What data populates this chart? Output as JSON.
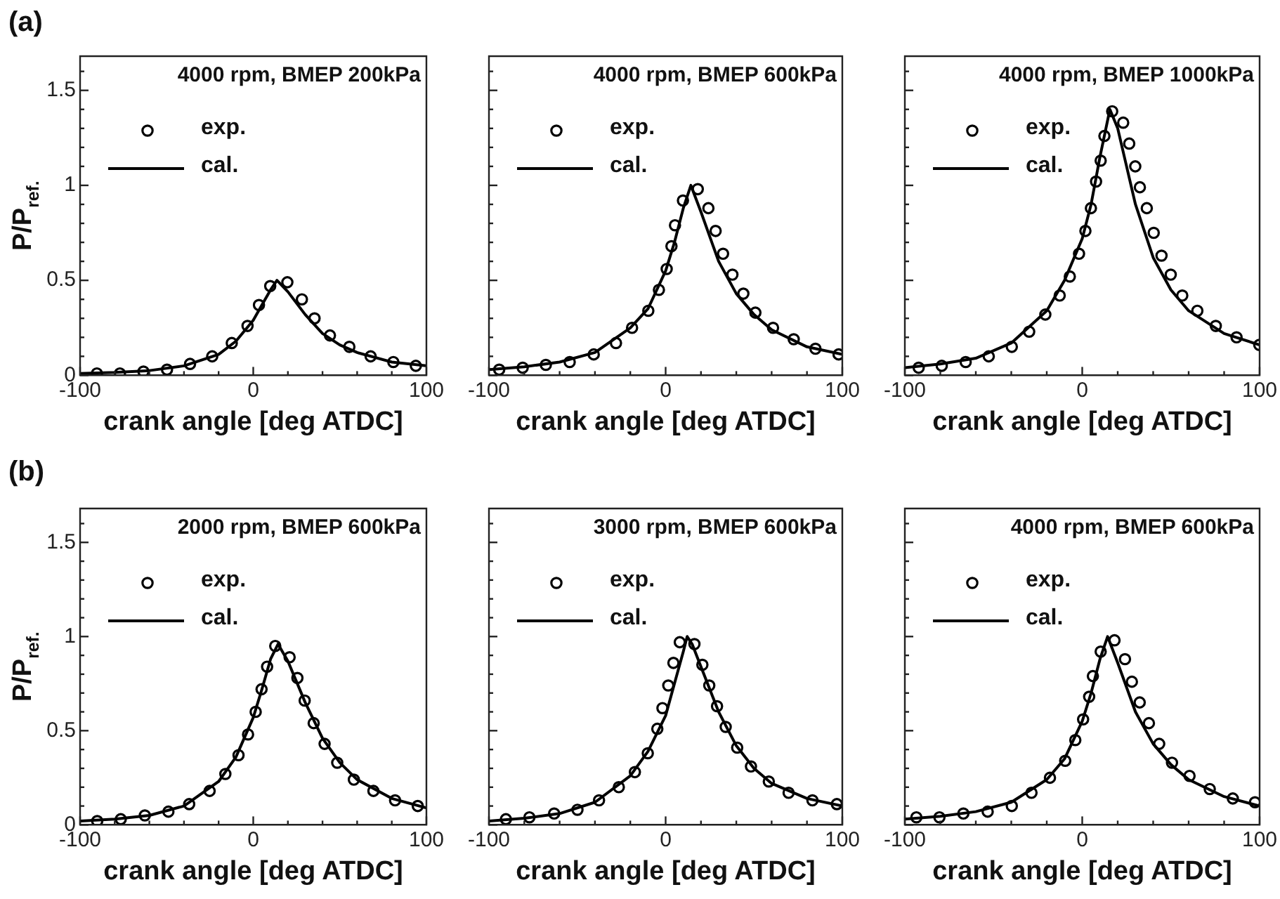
{
  "chart_data": [
    {
      "type": "line",
      "title": "4000 rpm, BMEP 200kPa",
      "xlabel": "crank angle [deg ATDC]",
      "ylabel": "P/P$_{ref.}$",
      "annotations": [
        "(a)"
      ],
      "xlim": [
        -100,
        100
      ],
      "xticks": [
        -100,
        {
          "value": -80,
          "label": null
        },
        {
          "value": -60,
          "label": null
        },
        {
          "value": -40,
          "label": null
        },
        {
          "value": -20,
          "label": null
        },
        0,
        {
          "value": 20,
          "label": null
        },
        {
          "value": 40,
          "label": null
        },
        {
          "value": 60,
          "label": null
        },
        {
          "value": 80,
          "label": null
        },
        100
      ],
      "ylim": [
        0,
        1.68
      ],
      "yticks": [
        0,
        {
          "value": 0.1,
          "label": null
        },
        {
          "value": 0.2,
          "label": null
        },
        {
          "value": 0.3,
          "label": null
        },
        {
          "value": 0.4,
          "label": null
        },
        0.5,
        {
          "value": 0.6,
          "label": null
        },
        {
          "value": 0.7,
          "label": null
        },
        {
          "value": 0.8,
          "label": null
        },
        {
          "value": 0.9,
          "label": null
        },
        1,
        {
          "value": 1.1,
          "label": null
        },
        {
          "value": 1.2,
          "label": null
        },
        {
          "value": 1.3,
          "label": null
        },
        {
          "value": 1.4,
          "label": null
        },
        1.5,
        {
          "value": 1.6,
          "label": null
        }
      ],
      "legend": "top left",
      "series": [
        {
          "name": "exp.",
          "type": "scatter",
          "marker": "circle",
          "color": "#000000",
          "x": [
            -90.3,
            -77,
            -63.4,
            -49.8,
            -36.5,
            -23.7,
            -12.4,
            -3.3,
            3.3,
            9.8,
            19.7,
            28.1,
            35.4,
            44.3,
            55.5,
            67.8,
            80.9,
            93.9
          ],
          "values": [
            0.01,
            0.01,
            0.02,
            0.03,
            0.06,
            0.1,
            0.17,
            0.26,
            0.37,
            0.47,
            0.49,
            0.4,
            0.3,
            0.21,
            0.15,
            0.1,
            0.07,
            0.05
          ]
        },
        {
          "name": "cal.",
          "type": "line",
          "marker": "none",
          "line_style": "solid",
          "color": "#000000",
          "x": [
            -100,
            -80,
            -60,
            -40,
            -20,
            -10,
            0,
            5,
            10,
            13.7,
            20,
            30,
            40,
            50,
            60,
            80,
            100
          ],
          "values": [
            0.01,
            0.015,
            0.025,
            0.05,
            0.11,
            0.18,
            0.29,
            0.37,
            0.45,
            0.5,
            0.44,
            0.32,
            0.22,
            0.16,
            0.12,
            0.07,
            0.05
          ]
        }
      ]
    },
    {
      "type": "line",
      "title": "4000 rpm, BMEP 600kPa",
      "xlabel": "crank angle [deg ATDC]",
      "tick_labels": "x",
      "xlim": [
        -100,
        100
      ],
      "xticks": [
        -100,
        {
          "value": -80,
          "label": null
        },
        {
          "value": -60,
          "label": null
        },
        {
          "value": -40,
          "label": null
        },
        {
          "value": -20,
          "label": null
        },
        0,
        {
          "value": 20,
          "label": null
        },
        {
          "value": 40,
          "label": null
        },
        {
          "value": 60,
          "label": null
        },
        {
          "value": 80,
          "label": null
        },
        100
      ],
      "ylim": [
        0,
        1.68
      ],
      "yticks": [
        0,
        {
          "value": 0.1,
          "label": null
        },
        {
          "value": 0.2,
          "label": null
        },
        {
          "value": 0.3,
          "label": null
        },
        {
          "value": 0.4,
          "label": null
        },
        0.5,
        {
          "value": 0.6,
          "label": null
        },
        {
          "value": 0.7,
          "label": null
        },
        {
          "value": 0.8,
          "label": null
        },
        {
          "value": 0.9,
          "label": null
        },
        1,
        {
          "value": 1.1,
          "label": null
        },
        {
          "value": 1.2,
          "label": null
        },
        {
          "value": 1.3,
          "label": null
        },
        {
          "value": 1.4,
          "label": null
        },
        1.5,
        {
          "value": 1.6,
          "label": null
        }
      ],
      "legend": "top left",
      "series": [
        {
          "name": "exp.",
          "type": "scatter",
          "marker": "circle",
          "color": "#000000",
          "x": [
            -94.2,
            -80.9,
            -67.8,
            -54.3,
            -40.7,
            -28.1,
            -19,
            -9.8,
            -3.8,
            0.6,
            3.3,
            5.3,
            9.8,
            18.2,
            24.2,
            28.3,
            32.5,
            37.8,
            44,
            50.8,
            60.8,
            72.5,
            84.8,
            97.9
          ],
          "values": [
            0.03,
            0.04,
            0.055,
            0.07,
            0.11,
            0.17,
            0.25,
            0.34,
            0.45,
            0.56,
            0.68,
            0.79,
            0.92,
            0.98,
            0.88,
            0.76,
            0.64,
            0.53,
            0.43,
            0.33,
            0.25,
            0.19,
            0.14,
            0.11
          ]
        },
        {
          "name": "cal.",
          "type": "line",
          "marker": "none",
          "line_style": "solid",
          "color": "#000000",
          "x": [
            -100,
            -80,
            -60,
            -40,
            -20,
            -10,
            0,
            5,
            10,
            14.3,
            20,
            30,
            40,
            50,
            60,
            80,
            100
          ],
          "values": [
            0.03,
            0.045,
            0.07,
            0.12,
            0.25,
            0.35,
            0.55,
            0.7,
            0.88,
            1,
            0.86,
            0.6,
            0.43,
            0.32,
            0.24,
            0.15,
            0.11
          ]
        }
      ]
    },
    {
      "type": "line",
      "title": "4000 rpm, BMEP 1000kPa",
      "xlabel": "crank angle [deg ATDC]",
      "tick_labels": "x",
      "xlim": [
        -100,
        100
      ],
      "xticks": [
        -100,
        {
          "value": -80,
          "label": null
        },
        {
          "value": -60,
          "label": null
        },
        {
          "value": -40,
          "label": null
        },
        {
          "value": -20,
          "label": null
        },
        0,
        {
          "value": 20,
          "label": null
        },
        {
          "value": 40,
          "label": null
        },
        {
          "value": 60,
          "label": null
        },
        {
          "value": 80,
          "label": null
        },
        100
      ],
      "ylim": [
        0,
        1.68
      ],
      "yticks": [
        0,
        {
          "value": 0.1,
          "label": null
        },
        {
          "value": 0.2,
          "label": null
        },
        {
          "value": 0.3,
          "label": null
        },
        {
          "value": 0.4,
          "label": null
        },
        0.5,
        {
          "value": 0.6,
          "label": null
        },
        {
          "value": 0.7,
          "label": null
        },
        {
          "value": 0.8,
          "label": null
        },
        {
          "value": 0.9,
          "label": null
        },
        1,
        {
          "value": 1.1,
          "label": null
        },
        {
          "value": 1.2,
          "label": null
        },
        {
          "value": 1.3,
          "label": null
        },
        {
          "value": 1.4,
          "label": null
        },
        1.5,
        {
          "value": 1.6,
          "label": null
        }
      ],
      "legend": "top left",
      "series": [
        {
          "name": "exp.",
          "type": "scatter",
          "marker": "circle",
          "color": "#000000",
          "x": [
            -92.2,
            -79.2,
            -65.7,
            -52.7,
            -39.7,
            -29.9,
            -20.8,
            -12.7,
            -7,
            -1.8,
            1.8,
            4.9,
            7.8,
            10.4,
            12.5,
            16.9,
            23.1,
            26.5,
            29.9,
            32.5,
            36.4,
            40.3,
            44.7,
            49.9,
            56.4,
            64.9,
            75.3,
            87,
            99.8
          ],
          "values": [
            0.04,
            0.05,
            0.07,
            0.1,
            0.15,
            0.23,
            0.32,
            0.42,
            0.52,
            0.64,
            0.76,
            0.88,
            1.02,
            1.13,
            1.26,
            1.39,
            1.33,
            1.22,
            1.1,
            0.99,
            0.88,
            0.75,
            0.63,
            0.53,
            0.42,
            0.34,
            0.26,
            0.2,
            0.16
          ]
        },
        {
          "name": "cal.",
          "type": "line",
          "marker": "none",
          "line_style": "solid",
          "color": "#000000",
          "x": [
            -100,
            -80,
            -60,
            -40,
            -20,
            -10,
            0,
            5,
            10,
            15.6,
            20,
            25,
            30,
            40,
            50,
            60,
            80,
            100
          ],
          "values": [
            0.04,
            0.06,
            0.09,
            0.17,
            0.34,
            0.5,
            0.72,
            0.9,
            1.15,
            1.4,
            1.3,
            1.1,
            0.9,
            0.62,
            0.45,
            0.34,
            0.22,
            0.16
          ]
        }
      ]
    },
    {
      "type": "line",
      "title": "2000 rpm, BMEP 600kPa",
      "xlabel": "crank angle [deg ATDC]",
      "ylabel": "P/P$_{ref.}$",
      "annotations": [
        "(b)"
      ],
      "xlim": [
        -100,
        100
      ],
      "xticks": [
        -100,
        {
          "value": -80,
          "label": null
        },
        {
          "value": -60,
          "label": null
        },
        {
          "value": -40,
          "label": null
        },
        {
          "value": -20,
          "label": null
        },
        0,
        {
          "value": 20,
          "label": null
        },
        {
          "value": 40,
          "label": null
        },
        {
          "value": 60,
          "label": null
        },
        {
          "value": 80,
          "label": null
        },
        100
      ],
      "ylim": [
        0,
        1.68
      ],
      "yticks": [
        0,
        {
          "value": 0.1,
          "label": null
        },
        {
          "value": 0.2,
          "label": null
        },
        {
          "value": 0.3,
          "label": null
        },
        {
          "value": 0.4,
          "label": null
        },
        0.5,
        {
          "value": 0.6,
          "label": null
        },
        {
          "value": 0.7,
          "label": null
        },
        {
          "value": 0.8,
          "label": null
        },
        {
          "value": 0.9,
          "label": null
        },
        1,
        {
          "value": 1.1,
          "label": null
        },
        {
          "value": 1.2,
          "label": null
        },
        {
          "value": 1.3,
          "label": null
        },
        {
          "value": 1.4,
          "label": null
        },
        1.5,
        {
          "value": 1.6,
          "label": null
        }
      ],
      "legend": "top left",
      "series": [
        {
          "name": "exp.",
          "type": "scatter",
          "marker": "circle",
          "color": "#000000",
          "x": [
            -90.1,
            -76.5,
            -62.6,
            -49,
            -37,
            -25.2,
            -16.1,
            -8.5,
            -3,
            1.4,
            4.8,
            8,
            12.7,
            21,
            25.5,
            29.7,
            34.9,
            41.2,
            48.5,
            58.1,
            69.4,
            81.9,
            95
          ],
          "values": [
            0.02,
            0.03,
            0.05,
            0.07,
            0.11,
            0.18,
            0.27,
            0.37,
            0.48,
            0.6,
            0.72,
            0.84,
            0.95,
            0.89,
            0.78,
            0.66,
            0.54,
            0.43,
            0.33,
            0.24,
            0.18,
            0.13,
            0.1
          ]
        },
        {
          "name": "cal.",
          "type": "line",
          "marker": "none",
          "line_style": "solid",
          "color": "#000000",
          "x": [
            -100,
            -80,
            -60,
            -40,
            -20,
            -10,
            0,
            5,
            10,
            14.3,
            20,
            30,
            40,
            50,
            60,
            80,
            100
          ],
          "values": [
            0.02,
            0.03,
            0.05,
            0.1,
            0.23,
            0.36,
            0.57,
            0.72,
            0.88,
            0.96,
            0.87,
            0.65,
            0.46,
            0.33,
            0.24,
            0.14,
            0.09
          ]
        }
      ]
    },
    {
      "type": "line",
      "title": "3000 rpm, BMEP 600kPa",
      "xlabel": "crank angle [deg ATDC]",
      "tick_labels": "x",
      "xlim": [
        -100,
        100
      ],
      "xticks": [
        -100,
        {
          "value": -80,
          "label": null
        },
        {
          "value": -60,
          "label": null
        },
        {
          "value": -40,
          "label": null
        },
        {
          "value": -20,
          "label": null
        },
        0,
        {
          "value": 20,
          "label": null
        },
        {
          "value": 40,
          "label": null
        },
        {
          "value": 60,
          "label": null
        },
        {
          "value": 80,
          "label": null
        },
        100
      ],
      "ylim": [
        0,
        1.68
      ],
      "yticks": [
        0,
        {
          "value": 0.1,
          "label": null
        },
        {
          "value": 0.2,
          "label": null
        },
        {
          "value": 0.3,
          "label": null
        },
        {
          "value": 0.4,
          "label": null
        },
        0.5,
        {
          "value": 0.6,
          "label": null
        },
        {
          "value": 0.7,
          "label": null
        },
        {
          "value": 0.8,
          "label": null
        },
        {
          "value": 0.9,
          "label": null
        },
        1,
        {
          "value": 1.1,
          "label": null
        },
        {
          "value": 1.2,
          "label": null
        },
        {
          "value": 1.3,
          "label": null
        },
        {
          "value": 1.4,
          "label": null
        },
        1.5,
        {
          "value": 1.6,
          "label": null
        }
      ],
      "legend": "top left",
      "series": [
        {
          "name": "exp.",
          "type": "scatter",
          "marker": "circle",
          "color": "#000000",
          "x": [
            -90.4,
            -77.1,
            -63.1,
            -49.9,
            -37.7,
            -26.5,
            -17.4,
            -10.1,
            -4.7,
            -1.8,
            1.5,
            4.4,
            8,
            16.3,
            20.8,
            24.7,
            29.1,
            34,
            40.5,
            48.3,
            58.4,
            69.6,
            83.1,
            96.9
          ],
          "values": [
            0.03,
            0.04,
            0.06,
            0.08,
            0.13,
            0.2,
            0.28,
            0.38,
            0.51,
            0.62,
            0.74,
            0.86,
            0.97,
            0.96,
            0.85,
            0.74,
            0.63,
            0.52,
            0.41,
            0.31,
            0.23,
            0.17,
            0.13,
            0.11
          ]
        },
        {
          "name": "cal.",
          "type": "line",
          "marker": "none",
          "line_style": "solid",
          "color": "#000000",
          "x": [
            -100,
            -80,
            -60,
            -40,
            -20,
            -10,
            0,
            5,
            10,
            12.2,
            15,
            20,
            30,
            40,
            50,
            60,
            80,
            100
          ],
          "values": [
            0.02,
            0.035,
            0.06,
            0.12,
            0.26,
            0.39,
            0.58,
            0.75,
            0.92,
            1,
            0.96,
            0.84,
            0.6,
            0.42,
            0.3,
            0.22,
            0.14,
            0.1
          ]
        }
      ]
    },
    {
      "type": "line",
      "title": "4000 rpm, BMEP 600kPa",
      "xlabel": "crank angle [deg ATDC]",
      "tick_labels": "x",
      "xlim": [
        -100,
        100
      ],
      "xticks": [
        -100,
        {
          "value": -80,
          "label": null
        },
        {
          "value": -60,
          "label": null
        },
        {
          "value": -40,
          "label": null
        },
        {
          "value": -20,
          "label": null
        },
        0,
        {
          "value": 20,
          "label": null
        },
        {
          "value": 40,
          "label": null
        },
        {
          "value": 60,
          "label": null
        },
        {
          "value": 80,
          "label": null
        },
        100
      ],
      "ylim": [
        0,
        1.68
      ],
      "yticks": [
        0,
        {
          "value": 0.1,
          "label": null
        },
        {
          "value": 0.2,
          "label": null
        },
        {
          "value": 0.3,
          "label": null
        },
        {
          "value": 0.4,
          "label": null
        },
        0.5,
        {
          "value": 0.6,
          "label": null
        },
        {
          "value": 0.7,
          "label": null
        },
        {
          "value": 0.8,
          "label": null
        },
        {
          "value": 0.9,
          "label": null
        },
        1,
        {
          "value": 1.1,
          "label": null
        },
        {
          "value": 1.2,
          "label": null
        },
        {
          "value": 1.3,
          "label": null
        },
        {
          "value": 1.4,
          "label": null
        },
        1.5,
        {
          "value": 1.6,
          "label": null
        }
      ],
      "legend": "top left",
      "series": [
        {
          "name": "exp.",
          "type": "scatter",
          "marker": "circle",
          "color": "#000000",
          "x": [
            -93.5,
            -80.5,
            -67,
            -53.3,
            -39.7,
            -28.6,
            -18.2,
            -9.6,
            -3.9,
            0.5,
            3.9,
            6,
            10.4,
            18.2,
            24.1,
            28,
            32.4,
            37.6,
            43.4,
            50.6,
            60.5,
            71.9,
            84.9,
            97.4
          ],
          "values": [
            0.04,
            0.04,
            0.06,
            0.07,
            0.1,
            0.17,
            0.25,
            0.34,
            0.45,
            0.56,
            0.68,
            0.79,
            0.92,
            0.98,
            0.88,
            0.76,
            0.65,
            0.54,
            0.43,
            0.33,
            0.26,
            0.19,
            0.14,
            0.12
          ]
        },
        {
          "name": "cal.",
          "type": "line",
          "marker": "none",
          "line_style": "solid",
          "color": "#000000",
          "x": [
            -100,
            -80,
            -60,
            -40,
            -20,
            -10,
            0,
            5,
            10,
            14.3,
            20,
            30,
            40,
            50,
            60,
            80,
            100
          ],
          "values": [
            0.03,
            0.045,
            0.07,
            0.12,
            0.24,
            0.35,
            0.55,
            0.7,
            0.88,
            1,
            0.86,
            0.6,
            0.43,
            0.32,
            0.24,
            0.15,
            0.1
          ]
        }
      ]
    }
  ]
}
